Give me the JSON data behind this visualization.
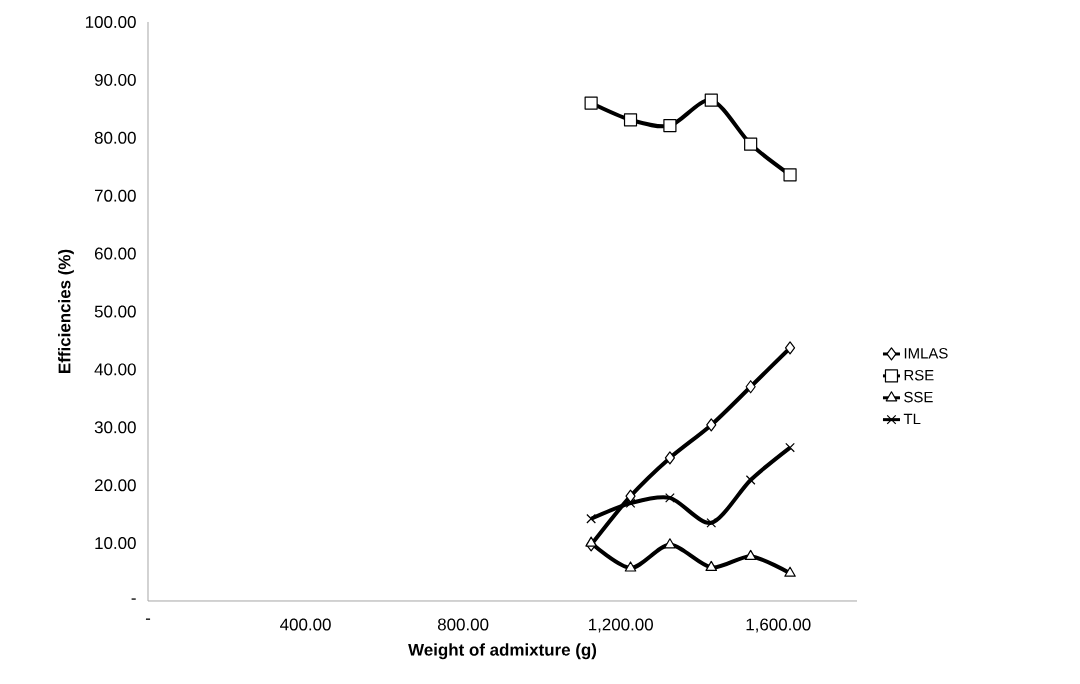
{
  "chart_data": {
    "type": "line",
    "xlabel": "Weight of admixture (g)",
    "ylabel": "Efficiencies (%)",
    "xlim": [
      0,
      1800
    ],
    "ylim": [
      0,
      100
    ],
    "xticks": [
      {
        "value": 0,
        "label": "-"
      },
      {
        "value": 400,
        "label": "400.00"
      },
      {
        "value": 800,
        "label": "800.00"
      },
      {
        "value": 1200,
        "label": "1,200.00"
      },
      {
        "value": 1600,
        "label": "1,600.00"
      }
    ],
    "yticks": [
      {
        "value": 0,
        "label": "-"
      },
      {
        "value": 10,
        "label": "10.00"
      },
      {
        "value": 20,
        "label": "20.00"
      },
      {
        "value": 30,
        "label": "30.00"
      },
      {
        "value": 40,
        "label": "40.00"
      },
      {
        "value": 50,
        "label": "50.00"
      },
      {
        "value": 60,
        "label": "60.00"
      },
      {
        "value": 70,
        "label": "70.00"
      },
      {
        "value": 80,
        "label": "80.00"
      },
      {
        "value": 90,
        "label": "90.00"
      },
      {
        "value": 100,
        "label": "100.00"
      }
    ],
    "x": [
      1125,
      1225,
      1325,
      1430,
      1530,
      1630
    ],
    "legend": "right",
    "grid": false,
    "line_style": "solid",
    "series": [
      {
        "name": "IMLAS",
        "color": "#000000",
        "marker": "diamond",
        "values": [
          9.7,
          18.1,
          24.7,
          30.4,
          37.0,
          43.7
        ]
      },
      {
        "name": "RSE",
        "color": "#000000",
        "marker": "square",
        "values": [
          86.0,
          83.1,
          82.1,
          86.5,
          78.9,
          73.6
        ]
      },
      {
        "name": "SSE",
        "color": "#000000",
        "marker": "triangle",
        "values": [
          10.0,
          5.7,
          9.7,
          5.8,
          7.7,
          4.8
        ]
      },
      {
        "name": "TL",
        "color": "#000000",
        "marker": "cross",
        "values": [
          14.2,
          16.9,
          17.8,
          13.5,
          20.9,
          26.5
        ]
      }
    ]
  }
}
